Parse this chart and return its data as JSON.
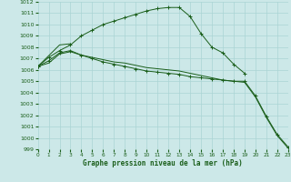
{
  "background_color": "#cce8e8",
  "grid_color": "#aad4d4",
  "line_color": "#1a5e1a",
  "marker_color": "#1a5e1a",
  "xlabel": "Graphe pression niveau de la mer (hPa)",
  "ylim": [
    999,
    1012
  ],
  "xlim": [
    0,
    23
  ],
  "yticks": [
    999,
    1000,
    1001,
    1002,
    1003,
    1004,
    1005,
    1006,
    1007,
    1008,
    1009,
    1010,
    1011,
    1012
  ],
  "xticks": [
    0,
    1,
    2,
    3,
    4,
    5,
    6,
    7,
    8,
    9,
    10,
    11,
    12,
    13,
    14,
    15,
    16,
    17,
    18,
    19,
    20,
    21,
    22,
    23
  ],
  "series": [
    {
      "x": [
        0,
        1,
        2,
        3,
        4,
        5,
        6,
        7,
        8,
        9,
        10,
        11,
        12,
        13,
        14,
        15,
        16,
        17,
        18,
        19
      ],
      "y": [
        1006.3,
        1007.1,
        1007.7,
        1008.2,
        1009.0,
        1009.5,
        1010.0,
        1010.3,
        1010.6,
        1010.9,
        1011.2,
        1011.4,
        1011.5,
        1011.5,
        1010.7,
        1009.2,
        1008.0,
        1007.5,
        1006.5,
        1005.7
      ],
      "marker": true
    },
    {
      "x": [
        0,
        2,
        3
      ],
      "y": [
        1006.3,
        1008.2,
        1008.3
      ],
      "marker": false
    },
    {
      "x": [
        0,
        1,
        2,
        3,
        4,
        5,
        6,
        7,
        8,
        9,
        10,
        11,
        12,
        13,
        14,
        15,
        16,
        17,
        18,
        19,
        20,
        21,
        22,
        23
      ],
      "y": [
        1006.3,
        1006.8,
        1007.5,
        1007.7,
        1007.3,
        1007.0,
        1006.7,
        1006.5,
        1006.3,
        1006.1,
        1005.9,
        1005.8,
        1005.7,
        1005.6,
        1005.4,
        1005.3,
        1005.2,
        1005.1,
        1005.0,
        1005.0,
        1003.7,
        1001.9,
        1000.3,
        999.2
      ],
      "marker": true
    },
    {
      "x": [
        0,
        1,
        2,
        3,
        4,
        5,
        6,
        7,
        8,
        9,
        10,
        11,
        12,
        13,
        14,
        15,
        16,
        17,
        18,
        19,
        20,
        21,
        22,
        23
      ],
      "y": [
        1006.3,
        1006.6,
        1007.4,
        1007.6,
        1007.3,
        1007.1,
        1006.9,
        1006.7,
        1006.6,
        1006.4,
        1006.2,
        1006.1,
        1006.0,
        1005.9,
        1005.7,
        1005.5,
        1005.3,
        1005.1,
        1005.0,
        1004.9,
        1003.6,
        1001.8,
        1000.2,
        999.1
      ],
      "marker": false
    }
  ]
}
